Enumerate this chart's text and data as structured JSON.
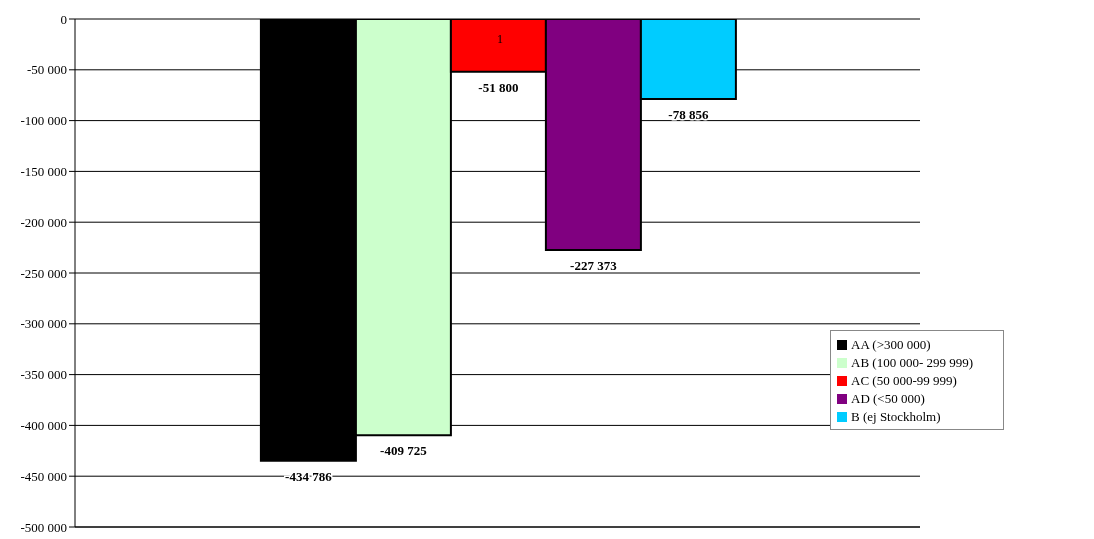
{
  "chart_data": {
    "type": "bar",
    "categories": [
      null
    ],
    "series": [
      {
        "name": "AA (>300 000)",
        "color": "#000000",
        "values": [
          -434786
        ],
        "value_labels": [
          "-434 786"
        ]
      },
      {
        "name": "AB (100 000- 299 999)",
        "color": "#ccffcc",
        "values": [
          -409725
        ],
        "value_labels": [
          "-409 725"
        ]
      },
      {
        "name": "AC (50 000-99 999)",
        "color": "#ff0000",
        "values": [
          -51800
        ],
        "value_labels": [
          "-51 800"
        ]
      },
      {
        "name": "AD (<50 000)",
        "color": "#800080",
        "values": [
          -227373
        ],
        "value_labels": [
          "-227 373"
        ]
      },
      {
        "name": "B (ej Stockholm)",
        "color": "#00ccff",
        "values": [
          -78856
        ],
        "value_labels": [
          "-78 856"
        ]
      }
    ],
    "ylim": [
      -500000,
      0
    ],
    "yticks": [
      {
        "value": 0,
        "label": "0"
      },
      {
        "value": -50000,
        "label": "-50 000"
      },
      {
        "value": -100000,
        "label": "-100 000"
      },
      {
        "value": -150000,
        "label": "-150 000"
      },
      {
        "value": -200000,
        "label": "-200 000"
      },
      {
        "value": -250000,
        "label": "-250 000"
      },
      {
        "value": -300000,
        "label": "-300 000"
      },
      {
        "value": -350000,
        "label": "-350 000"
      },
      {
        "value": -400000,
        "label": "-400 000"
      },
      {
        "value": -450000,
        "label": "-450 000"
      },
      {
        "value": -500000,
        "label": "-500 000"
      }
    ],
    "grid": "y",
    "legend": "right",
    "annotations": [
      "1"
    ]
  }
}
